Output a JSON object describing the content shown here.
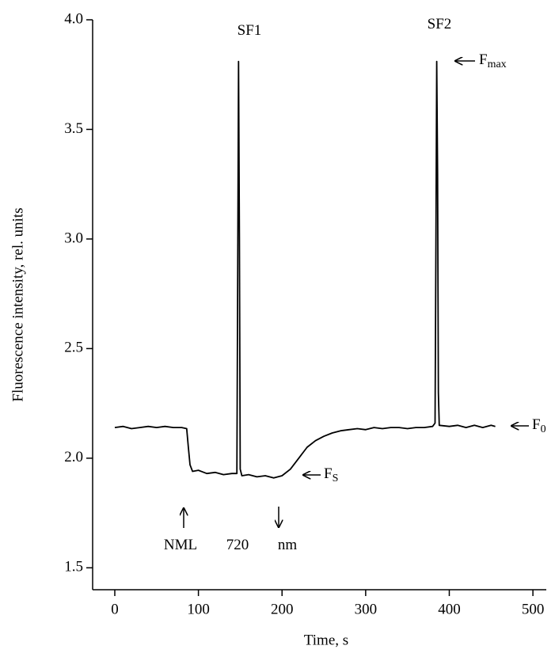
{
  "chart_data": {
    "type": "line",
    "x_label": "Time, s",
    "y_label": "Fluorescence intensity, rel. units",
    "xlim": [
      -26.5,
      516
    ],
    "ylim": [
      1.4,
      4.0
    ],
    "xticks": [
      0,
      100,
      200,
      300,
      400,
      500
    ],
    "yticks": [
      1.5,
      {
        "value": 2,
        "label": "2.0"
      },
      2.5,
      {
        "value": 3,
        "label": "3.0"
      },
      3.5,
      {
        "value": 4,
        "label": "4.0"
      }
    ],
    "x": [
      0,
      10,
      20,
      30,
      40,
      50,
      60,
      70,
      80,
      86,
      88,
      90,
      93,
      100,
      110,
      120,
      130,
      140,
      146,
      147,
      148,
      149,
      150,
      152,
      160,
      170,
      180,
      190,
      200,
      210,
      220,
      230,
      240,
      250,
      260,
      270,
      280,
      290,
      300,
      310,
      320,
      330,
      340,
      350,
      360,
      370,
      380,
      383,
      384,
      385,
      386,
      387,
      388,
      400,
      410,
      420,
      430,
      440,
      450,
      455
    ],
    "series": [
      {
        "color": "#000000",
        "values": [
          2.14,
          2.145,
          2.135,
          2.14,
          2.145,
          2.14,
          2.145,
          2.14,
          2.14,
          2.135,
          2.05,
          1.97,
          1.94,
          1.945,
          1.93,
          1.935,
          1.925,
          1.93,
          1.93,
          2.9,
          3.81,
          3.0,
          1.95,
          1.92,
          1.925,
          1.915,
          1.92,
          1.91,
          1.92,
          1.95,
          2.0,
          2.05,
          2.08,
          2.1,
          2.115,
          2.125,
          2.13,
          2.135,
          2.13,
          2.14,
          2.135,
          2.14,
          2.14,
          2.135,
          2.14,
          2.14,
          2.145,
          2.16,
          2.98,
          3.81,
          3.3,
          2.3,
          2.15,
          2.145,
          2.15,
          2.14,
          2.15,
          2.14,
          2.15,
          2.145
        ]
      }
    ],
    "annotations": [
      {
        "text": "SF1"
      },
      {
        "text": "SF2"
      },
      {
        "text": "F",
        "sub": "max"
      },
      {
        "text": "F",
        "sub": "0"
      },
      {
        "text": "F",
        "sub": "S"
      },
      {
        "text": "NML"
      },
      {
        "text": "720"
      },
      {
        "text": "nm"
      }
    ]
  }
}
